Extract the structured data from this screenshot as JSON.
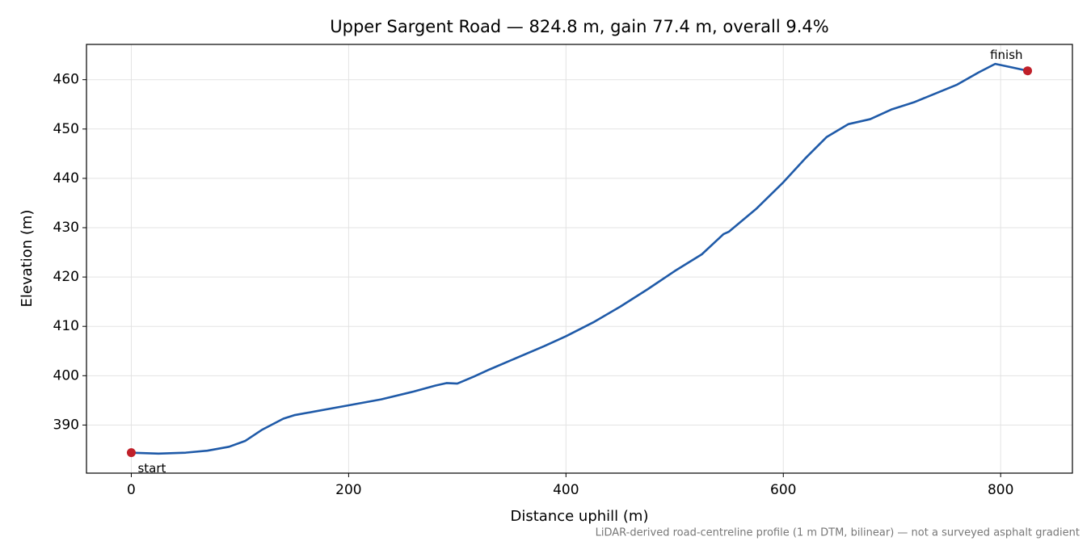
{
  "chart_data": {
    "type": "line",
    "title": "Upper Sargent Road — 824.8 m, gain 77.4 m, overall 9.4%",
    "x_label": "Distance uphill (m)",
    "y_label": "Elevation (m)",
    "footnote": "LiDAR-derived road-centreline profile (1 m DTM, bilinear) — not a surveyed asphalt gradient",
    "x": [
      0,
      25,
      50,
      70,
      90,
      105,
      120,
      140,
      150,
      200,
      230,
      260,
      280,
      290,
      300,
      315,
      330,
      380,
      400,
      425,
      450,
      475,
      500,
      525,
      545,
      550,
      575,
      600,
      620,
      640,
      660,
      680,
      700,
      720,
      760,
      780,
      795,
      810,
      824.8
    ],
    "series": [
      {
        "name": "Elevation",
        "color": "#1f5aa8",
        "values": [
          384.4,
          384.2,
          384.4,
          384.8,
          385.6,
          386.8,
          389.0,
          391.3,
          392.0,
          394.0,
          395.2,
          396.8,
          398.0,
          398.5,
          398.4,
          399.8,
          401.3,
          406.0,
          408.0,
          410.8,
          414.0,
          417.5,
          421.2,
          424.6,
          428.7,
          429.2,
          433.8,
          439.2,
          444.0,
          448.4,
          451.0,
          452.0,
          454.0,
          455.4,
          459.0,
          461.5,
          463.2,
          462.5,
          461.8
        ]
      }
    ],
    "annotations": [
      "start",
      "finish"
    ],
    "marker_color": "#c0202a",
    "xlim": [
      -41.24,
      866.04
    ],
    "ylim": [
      380.25,
      467.15
    ],
    "xticks": [
      0,
      200,
      400,
      600,
      800
    ],
    "yticks": [
      390,
      400,
      410,
      420,
      430,
      440,
      450,
      460
    ],
    "grid": true
  }
}
